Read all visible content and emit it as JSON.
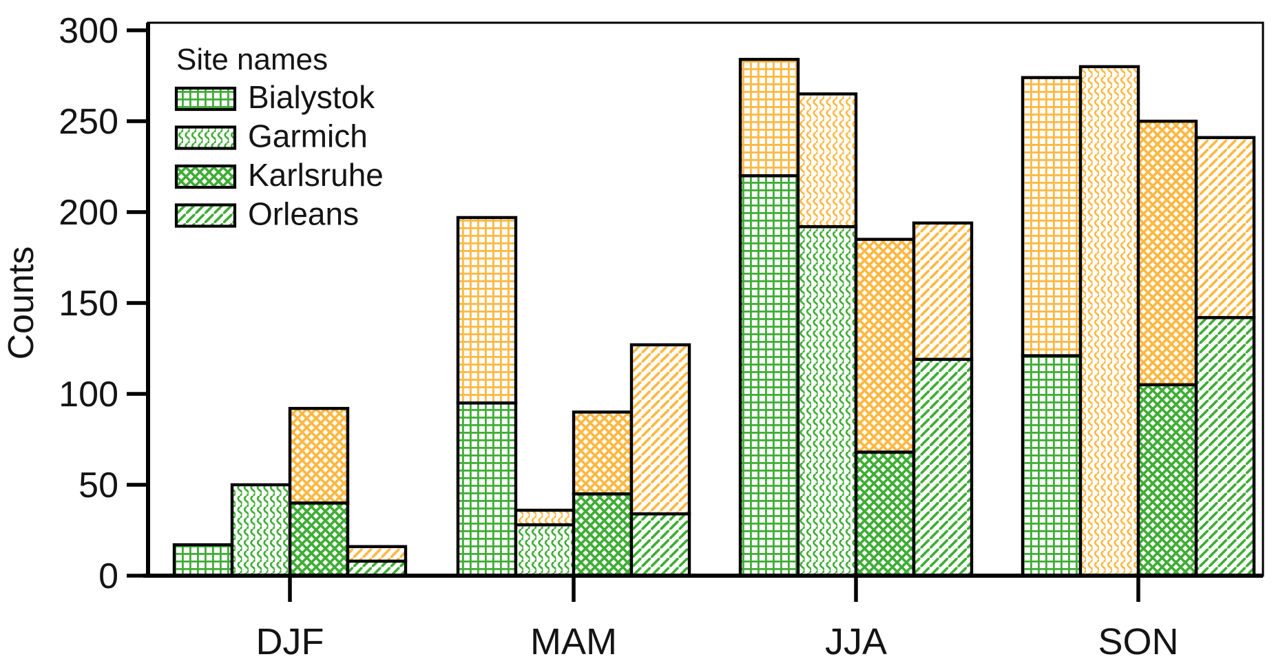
{
  "figure": {
    "background": "#ffffff",
    "axis_color": "#000000",
    "text_color": "#141414"
  },
  "chart_data": {
    "type": "bar",
    "stacked": true,
    "title": "",
    "xlabel": "",
    "ylabel": "Counts",
    "ylim": [
      0,
      300
    ],
    "yticks": [
      0,
      50,
      100,
      150,
      200,
      250,
      300
    ],
    "categories": [
      "DJF",
      "MAM",
      "JJA",
      "SON"
    ],
    "grid": false,
    "legend": {
      "title": "Site names",
      "position": "top-left",
      "entries": [
        "Bialystok",
        "Garmich",
        "Karlsruhe",
        "Orleans"
      ]
    },
    "sites": [
      {
        "name": "Bialystok",
        "pattern": "grid"
      },
      {
        "name": "Garmich",
        "pattern": "wave"
      },
      {
        "name": "Karlsruhe",
        "pattern": "crosshatch"
      },
      {
        "name": "Orleans",
        "pattern": "diagonal"
      }
    ],
    "stack_layers": [
      {
        "name": "lower",
        "color": "#3FAD35"
      },
      {
        "name": "upper",
        "color": "#FDB843"
      }
    ],
    "series": [
      {
        "site": "Bialystok",
        "lower": [
          17,
          95,
          220,
          121
        ],
        "upper": [
          0,
          102,
          64,
          153
        ]
      },
      {
        "site": "Garmich",
        "lower": [
          50,
          28,
          192,
          0
        ],
        "upper": [
          0,
          8,
          73,
          280
        ]
      },
      {
        "site": "Karlsruhe",
        "lower": [
          40,
          45,
          68,
          105
        ],
        "upper": [
          52,
          45,
          117,
          145
        ]
      },
      {
        "site": "Orleans",
        "lower": [
          8,
          34,
          119,
          142
        ],
        "upper": [
          8,
          93,
          75,
          99
        ]
      }
    ]
  }
}
